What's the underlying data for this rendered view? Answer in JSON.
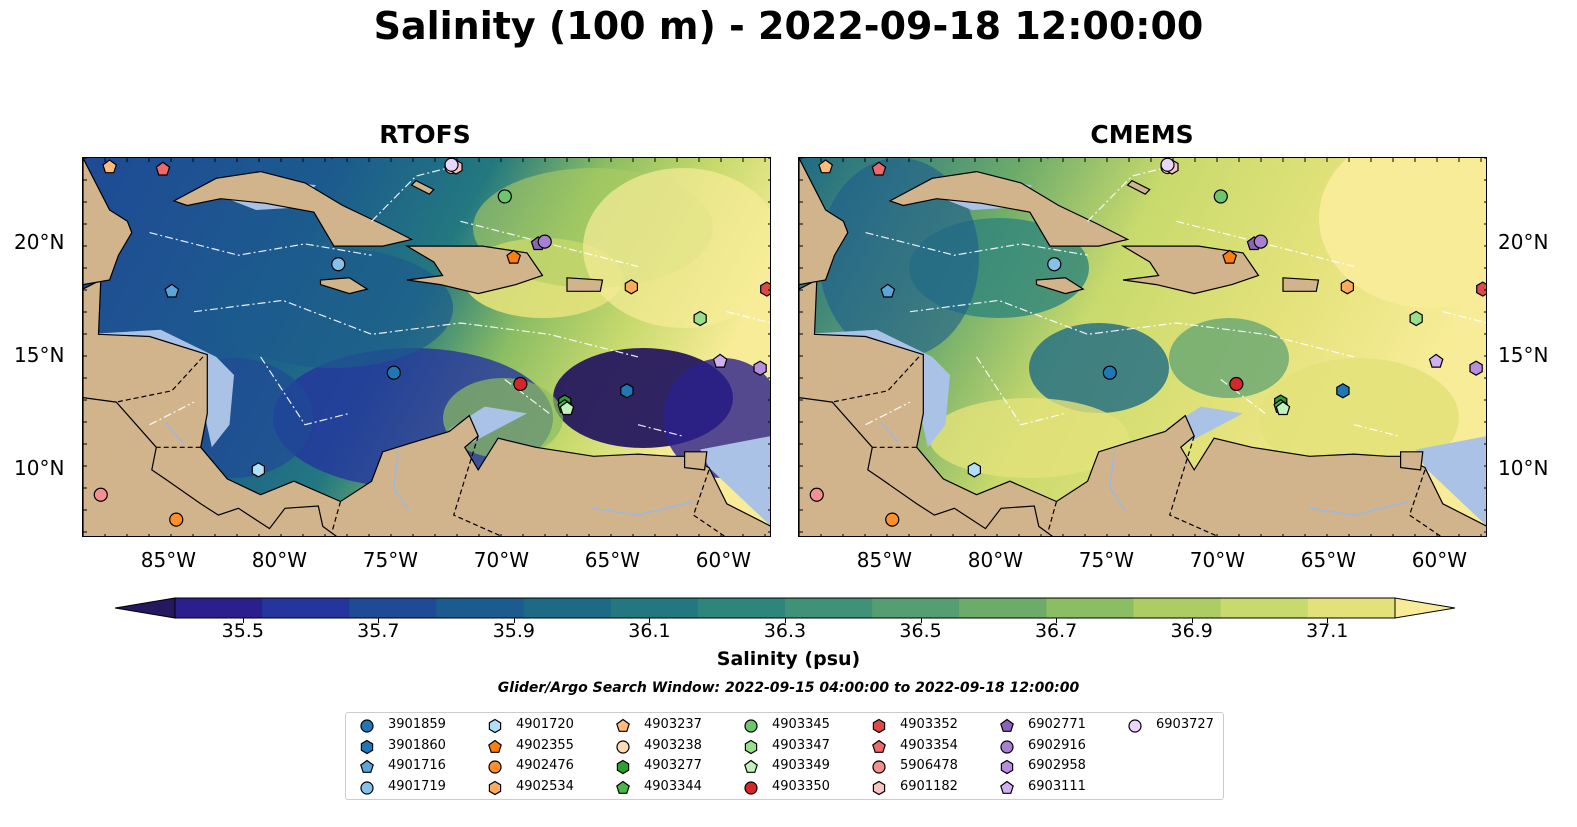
{
  "title": "Salinity (100 m) - 2022-09-18 12:00:00",
  "panels": [
    {
      "name": "RTOFS"
    },
    {
      "name": "CMEMS"
    }
  ],
  "axes": {
    "lon_ticks": [
      "85°W",
      "80°W",
      "75°W",
      "70°W",
      "65°W",
      "60°W"
    ],
    "lat_ticks": [
      "20°N",
      "15°N",
      "10°N"
    ]
  },
  "colorbar": {
    "label": "Salinity (psu)",
    "ticks": [
      "35.5",
      "35.7",
      "35.9",
      "36.1",
      "36.3",
      "36.5",
      "36.7",
      "36.9",
      "37.1"
    ],
    "colors": [
      "#26185f",
      "#2a1f8c",
      "#24359e",
      "#1f4a96",
      "#1c5b8d",
      "#1d6a85",
      "#237880",
      "#2e857c",
      "#3f9278",
      "#559e72",
      "#6dab6b",
      "#8bbd63",
      "#abcd63",
      "#c8da6d",
      "#e3e27a",
      "#f8ec98"
    ]
  },
  "search_window": "Glider/Argo Search Window: 2022-09-15 04:00:00 to 2022-09-18 12:00:00",
  "legend": [
    {
      "id": "3901859",
      "shape": "circle",
      "color": "#1f77b4"
    },
    {
      "id": "3901860",
      "shape": "hexagon",
      "color": "#1f77b4"
    },
    {
      "id": "4901716",
      "shape": "pentagon",
      "color": "#5aa6dc"
    },
    {
      "id": "4901719",
      "shape": "circle",
      "color": "#86c1ea"
    },
    {
      "id": "4901720",
      "shape": "hexagon",
      "color": "#aee0f8"
    },
    {
      "id": "4902355",
      "shape": "pentagon",
      "color": "#ff7f0e"
    },
    {
      "id": "4902476",
      "shape": "circle",
      "color": "#ff8f2a"
    },
    {
      "id": "4902534",
      "shape": "hexagon",
      "color": "#ffab5e"
    },
    {
      "id": "4903237",
      "shape": "pentagon",
      "color": "#ffbb78"
    },
    {
      "id": "4903238",
      "shape": "circle",
      "color": "#ffdcb8"
    },
    {
      "id": "4903277",
      "shape": "hexagon",
      "color": "#2ca02c"
    },
    {
      "id": "4903344",
      "shape": "pentagon",
      "color": "#49b649"
    },
    {
      "id": "4903345",
      "shape": "circle",
      "color": "#6dc56d"
    },
    {
      "id": "4903347",
      "shape": "hexagon",
      "color": "#98df8a"
    },
    {
      "id": "4903349",
      "shape": "pentagon",
      "color": "#c4f0bc"
    },
    {
      "id": "4903350",
      "shape": "circle",
      "color": "#d62728"
    },
    {
      "id": "4903352",
      "shape": "hexagon",
      "color": "#e04848"
    },
    {
      "id": "4903354",
      "shape": "pentagon",
      "color": "#ee6a6a"
    },
    {
      "id": "5906478",
      "shape": "circle",
      "color": "#f59090"
    },
    {
      "id": "6901182",
      "shape": "hexagon",
      "color": "#f7c4c0"
    },
    {
      "id": "6902771",
      "shape": "pentagon",
      "color": "#8c62bd"
    },
    {
      "id": "6902916",
      "shape": "circle",
      "color": "#a97fd3"
    },
    {
      "id": "6902958",
      "shape": "hexagon",
      "color": "#b88ee0"
    },
    {
      "id": "6903111",
      "shape": "pentagon",
      "color": "#d0b0f0"
    },
    {
      "id": "6903727",
      "shape": "circle",
      "color": "#ead6fa"
    }
  ]
}
